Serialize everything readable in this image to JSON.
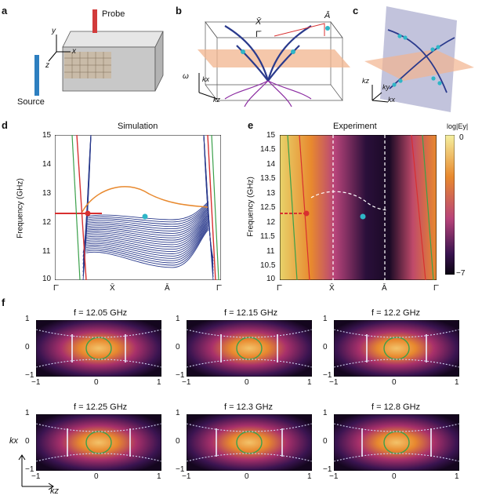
{
  "panels": {
    "a": {
      "label": "a",
      "probe": "Probe",
      "source": "Source",
      "axis_y": "y",
      "axis_x": "x",
      "axis_z": "z"
    },
    "b": {
      "label": "b",
      "xbar": "X̄",
      "gammabar": "Γ̄",
      "abar": "Ā",
      "omega": "ω",
      "kx": "kx",
      "kz": "kz"
    },
    "c": {
      "label": "c",
      "kz": "kz",
      "ky": "ky",
      "kx": "kx"
    },
    "d": {
      "label": "d",
      "title": "Simulation",
      "ylabel": "Frequency (GHz)",
      "yticks": [
        "15",
        "14",
        "13",
        "12",
        "11",
        "10"
      ],
      "xticks": [
        "Γ̄",
        "X̄",
        "Ā",
        "Γ̄"
      ]
    },
    "e": {
      "label": "e",
      "title": "Experiment",
      "ylabel": "Frequency (GHz)",
      "yticks": [
        "15",
        "14.5",
        "14",
        "13.5",
        "13",
        "12.5",
        "12",
        "11.5",
        "11",
        "10.5",
        "10"
      ],
      "xticks": [
        "Γ̄",
        "X̄",
        "Ā",
        "Γ̄"
      ],
      "colorbar_label": "log|Ey|",
      "colorbar_max": "0",
      "colorbar_min": "−7"
    },
    "f": {
      "label": "f",
      "maps": [
        {
          "title": "f = 12.05 GHz"
        },
        {
          "title": "f = 12.15 GHz"
        },
        {
          "title": "f = 12.2 GHz"
        },
        {
          "title": "f = 12.25 GHz"
        },
        {
          "title": "f = 12.3 GHz"
        },
        {
          "title": "f = 12.8 GHz"
        }
      ],
      "xticks": [
        "−1",
        "0",
        "1"
      ],
      "yticks": [
        "1",
        "0",
        "−1"
      ],
      "kx": "kx",
      "kz": "kz"
    }
  },
  "colors": {
    "blue_band": "#2a3a8c",
    "orange": "#e8892e",
    "red": "#d83030",
    "green": "#3aa04a",
    "cyan": "#2fb6c7",
    "peach": "#f2b48e"
  }
}
